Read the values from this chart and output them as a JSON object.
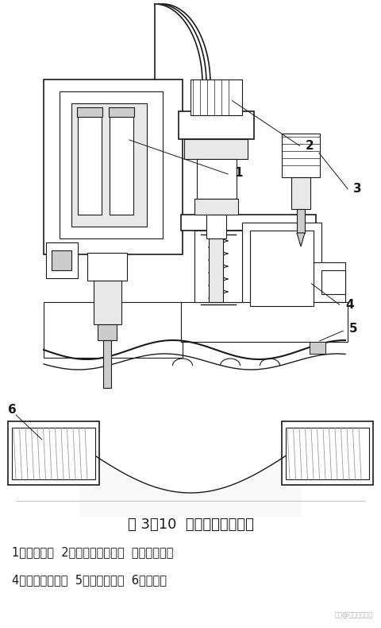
{
  "title": "图 3－10  电磁阀结构示意图",
  "caption_line1": "1－电磁头；  2－流量调节手柄；  外排气螺丝；",
  "caption_line2": "4－电磁阀上腔；  5－橡皮隔膜；  6－导流孔",
  "bg_color": "#ffffff",
  "line_color": "#1a1a1a",
  "light_fill": "#e8e8e8",
  "title_fontsize": 13,
  "caption_fontsize": 10.5,
  "watermark": "头条@电气自动化星"
}
